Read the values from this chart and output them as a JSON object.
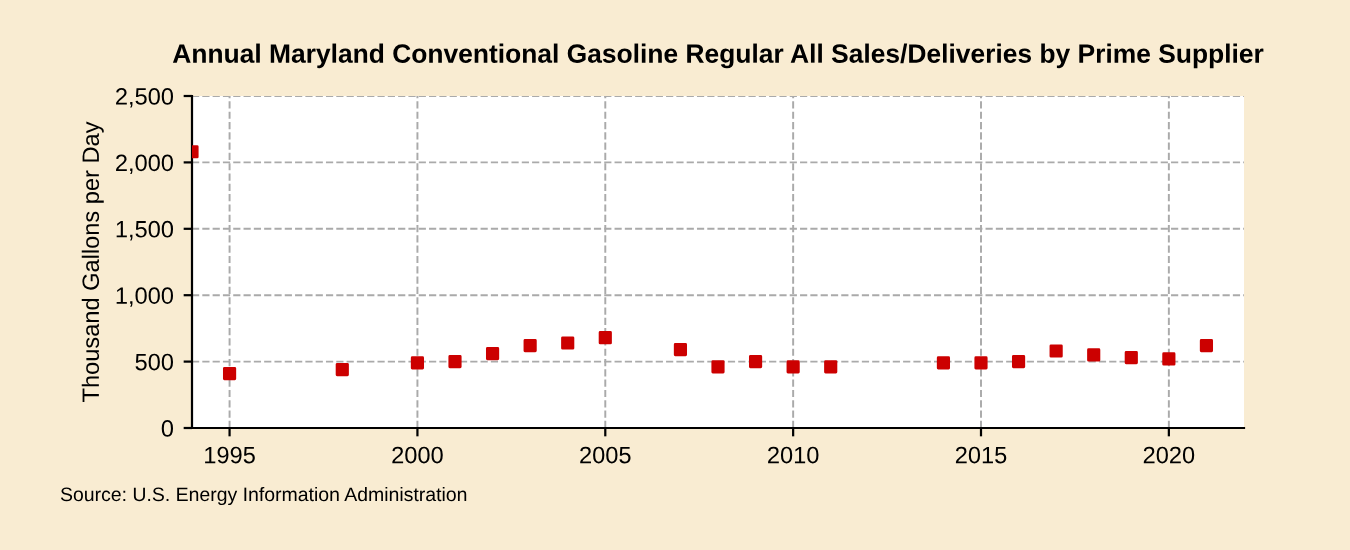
{
  "chart_data": {
    "type": "scatter",
    "title": "Annual Maryland Conventional Gasoline Regular All Sales/Deliveries by Prime Supplier",
    "ylabel": "Thousand Gallons per Day",
    "x": [
      1994,
      1995,
      1998,
      2000,
      2001,
      2002,
      2003,
      2004,
      2005,
      2007,
      2008,
      2009,
      2010,
      2011,
      2014,
      2015,
      2016,
      2017,
      2018,
      2019,
      2020,
      2021
    ],
    "series": [
      {
        "color": "#cc0000",
        "values": [
          2080,
          410,
          440,
          490,
          500,
          560,
          620,
          640,
          680,
          590,
          460,
          500,
          460,
          460,
          490,
          490,
          500,
          580,
          550,
          530,
          520,
          620
        ]
      }
    ],
    "xlim": [
      1994,
      2022
    ],
    "xticks": [
      1995,
      2000,
      2005,
      2010,
      2015,
      2020
    ],
    "ylim": [
      0,
      2500
    ],
    "yticks": [
      {
        "value": 0,
        "label": "0"
      },
      {
        "value": 500,
        "label": "500"
      },
      {
        "value": 1000,
        "label": "1,000"
      },
      {
        "value": 1500,
        "label": "1,500"
      },
      {
        "value": 2000,
        "label": "2,000"
      },
      {
        "value": 2500,
        "label": "2,500"
      }
    ],
    "grid": true,
    "marker": "square",
    "annotations": [
      "Source: U.S. Energy Information Administration"
    ]
  }
}
